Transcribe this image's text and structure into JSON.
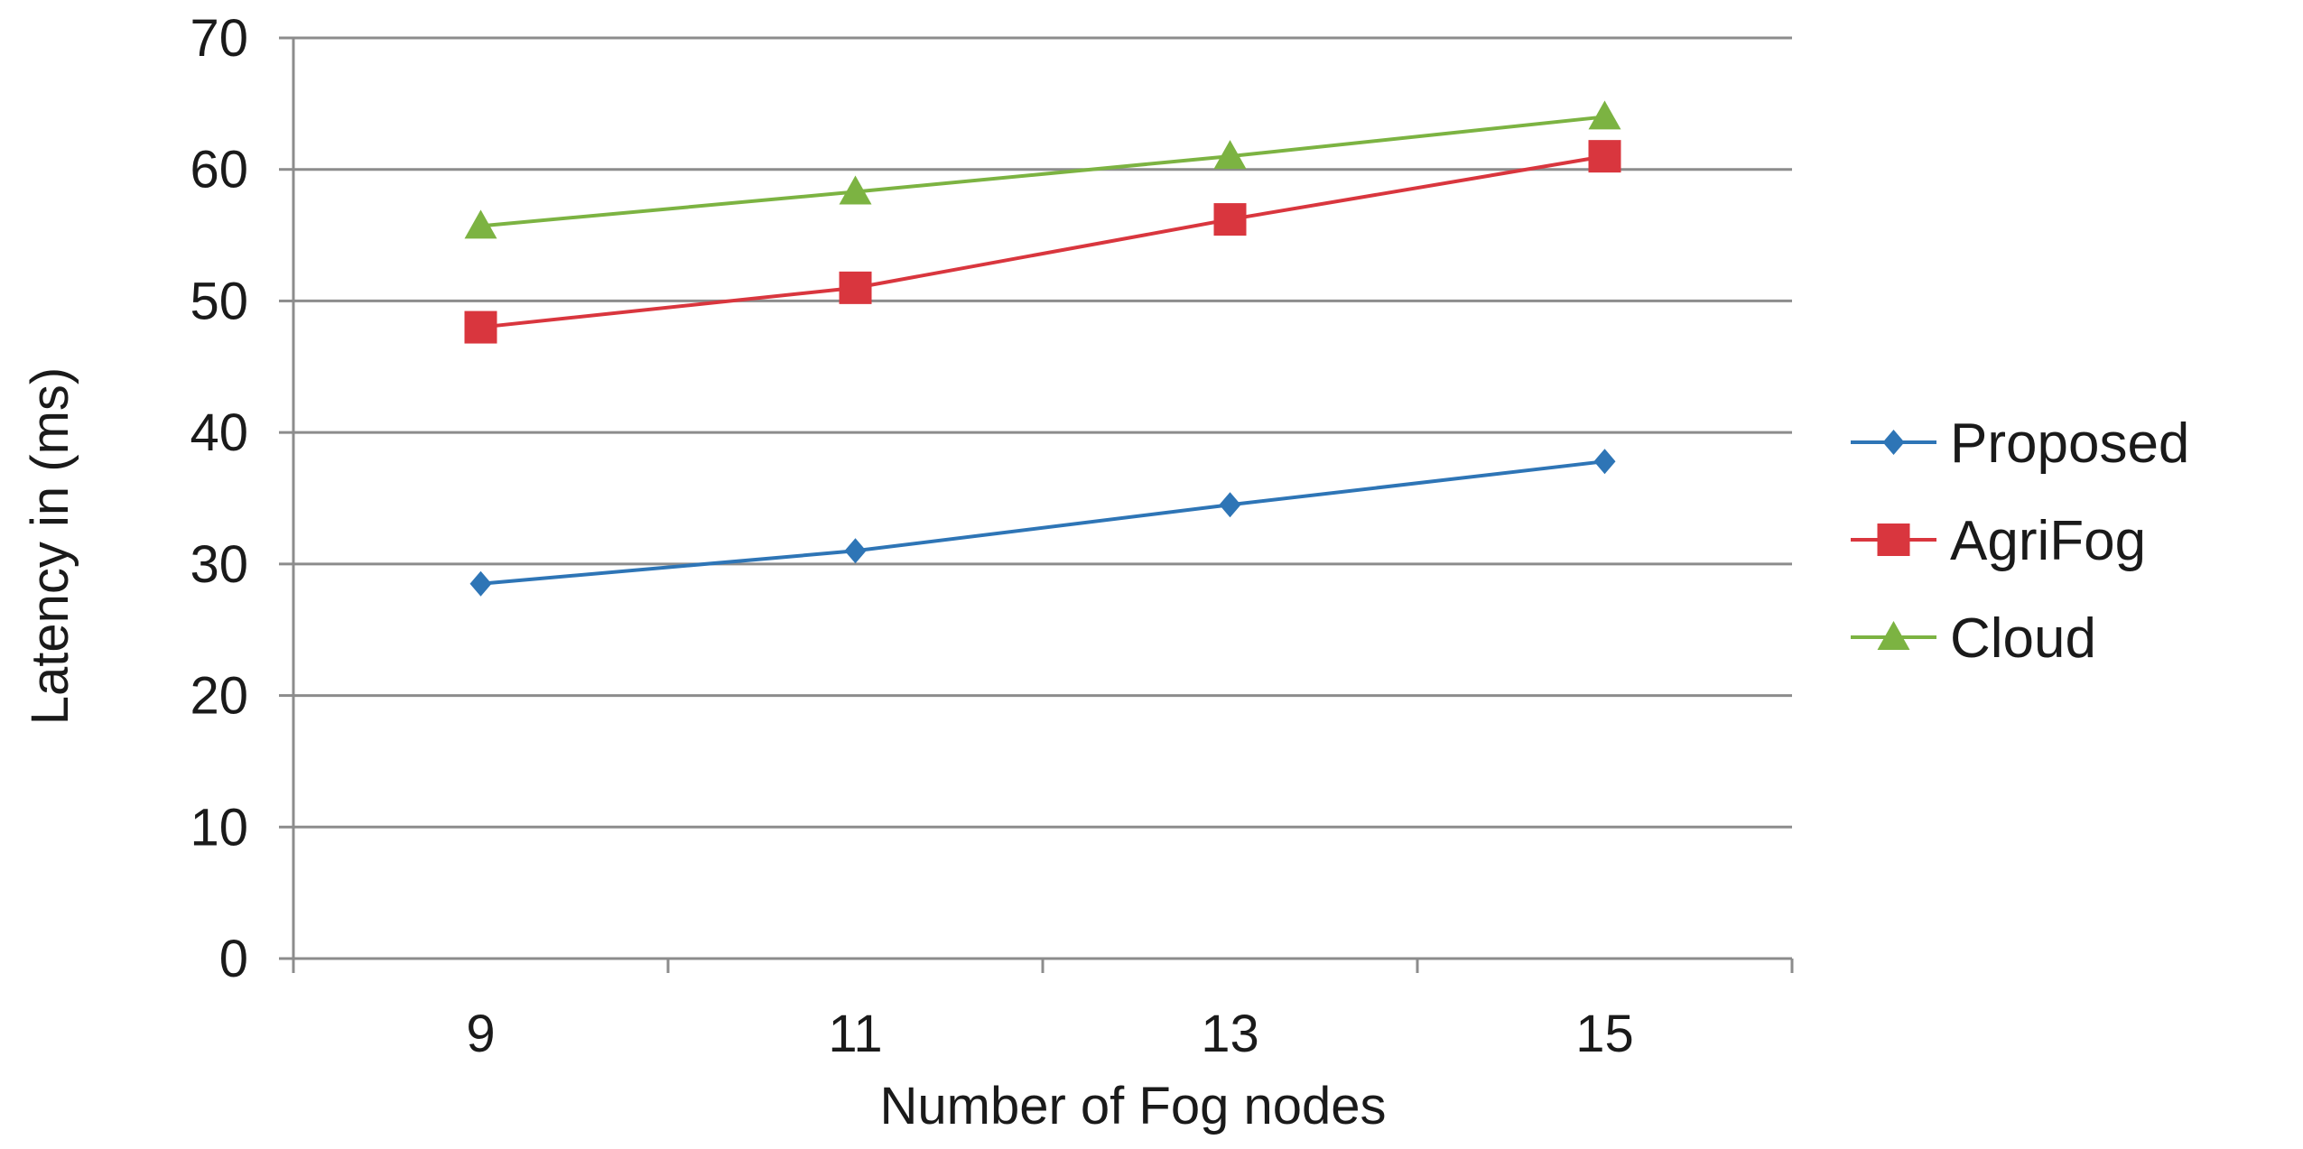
{
  "chart_data": {
    "type": "line",
    "title": "",
    "xlabel": "Number of Fog nodes",
    "ylabel": "Latency in (ms)",
    "categories": [
      "9",
      "11",
      "13",
      "15"
    ],
    "ylim": [
      0,
      70
    ],
    "yticks": [
      0,
      10,
      20,
      30,
      40,
      50,
      60,
      70
    ],
    "grid": true,
    "legend_position": "right",
    "series": [
      {
        "name": "Proposed",
        "values": [
          28.5,
          31,
          34.5,
          37.8
        ],
        "color": "#2e75b6",
        "marker": "diamond"
      },
      {
        "name": "AgriFog",
        "values": [
          48,
          51,
          56.2,
          61
        ],
        "color": "#d9363e",
        "marker": "square"
      },
      {
        "name": "Cloud",
        "values": [
          55.7,
          58.3,
          61,
          64
        ],
        "color": "#7cb342",
        "marker": "triangle"
      }
    ]
  }
}
